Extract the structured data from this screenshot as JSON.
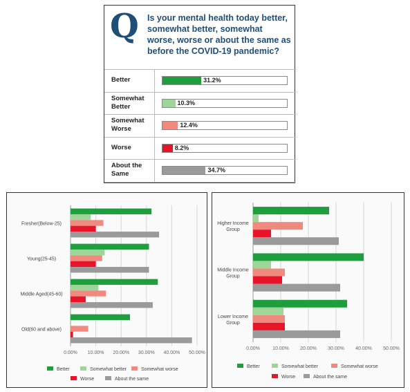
{
  "question": {
    "letter": "Q",
    "text": "Is your mental health today better, somewhat better, somewhat worse, worse or about the same as before the COVID-19 pandemic?"
  },
  "colors": {
    "better": "#1e9e3c",
    "somewhat_better": "#9ed69a",
    "somewhat_worse": "#f08a7e",
    "worse": "#e8152a",
    "about_same": "#9a9a9a",
    "question_text": "#1f4e79"
  },
  "chart_data": [
    {
      "type": "bar",
      "orientation": "horizontal",
      "title": "",
      "categories": [
        "Better",
        "Somewhat Better",
        "Somewhat Worse",
        "Worse",
        "About the Same"
      ],
      "values": [
        31.2,
        10.3,
        12.4,
        8.2,
        34.7
      ],
      "value_labels": [
        "31.2%",
        "10.3%",
        "12.4%",
        "8.2%",
        "34.7%"
      ],
      "max": 100
    },
    {
      "type": "bar",
      "orientation": "horizontal",
      "title": "",
      "categories": [
        "Fresher(Below-25)",
        "Young(25-45)",
        "Middle Aged(45-60)",
        "Old(60 and above)"
      ],
      "series": [
        {
          "name": "Better",
          "values": [
            32,
            31,
            34.5,
            23.5
          ]
        },
        {
          "name": "Somewhat better",
          "values": [
            8,
            13.5,
            11,
            0
          ]
        },
        {
          "name": "Somewhat worse",
          "values": [
            13,
            12.5,
            14,
            7
          ]
        },
        {
          "name": "Worse",
          "values": [
            10,
            10,
            6,
            1
          ]
        },
        {
          "name": "About the same",
          "values": [
            35,
            31,
            32.5,
            48
          ]
        }
      ],
      "x_ticks": [
        "0.00%",
        "10.00%",
        "20.00%",
        "30.00%",
        "40.00%",
        "50.00%"
      ],
      "xlim": [
        0,
        50
      ],
      "legend_position": "bottom",
      "grid": true
    },
    {
      "type": "bar",
      "orientation": "horizontal",
      "title": "",
      "categories": [
        "Higher Income Group",
        "Middle Income Group",
        "Lower Income Group"
      ],
      "series": [
        {
          "name": "Better",
          "values": [
            27.5,
            40,
            34
          ]
        },
        {
          "name": "Somewhat better",
          "values": [
            2,
            6.5,
            11
          ]
        },
        {
          "name": "Somewhat worse",
          "values": [
            18,
            11.5,
            11.5
          ]
        },
        {
          "name": "Worse",
          "values": [
            6.5,
            10.5,
            11.5
          ]
        },
        {
          "name": "About the same",
          "values": [
            31,
            31.5,
            31.5
          ]
        }
      ],
      "x_ticks": [
        "0.00%",
        "10.00%",
        "20.00%",
        "30.00%",
        "40.00%",
        "50.00%"
      ],
      "xlim": [
        0,
        50
      ],
      "legend_position": "bottom",
      "grid": true
    }
  ]
}
